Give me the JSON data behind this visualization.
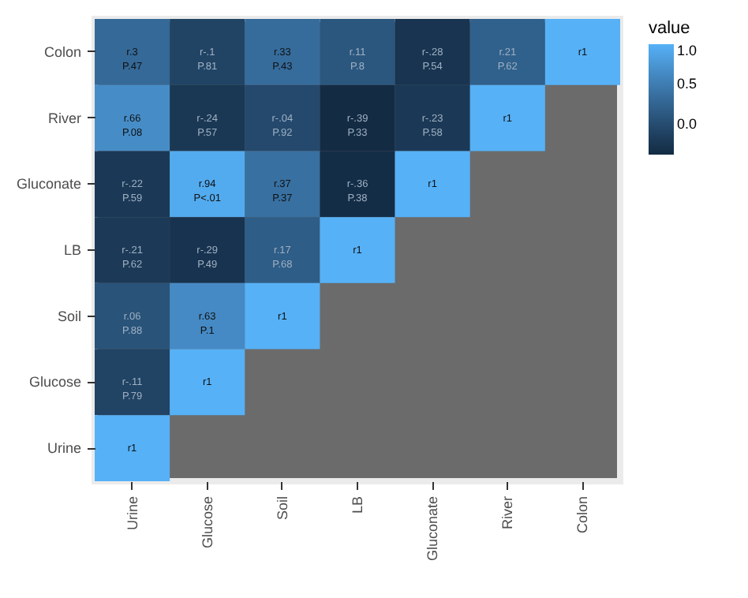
{
  "chart_data": {
    "type": "heatmap",
    "legend_title": "value",
    "categories": [
      "Urine",
      "Glucose",
      "Soil",
      "LB",
      "Gluconate",
      "River",
      "Colon"
    ],
    "y_categories": [
      "Colon",
      "River",
      "Gluconate",
      "LB",
      "Soil",
      "Glucose",
      "Urine"
    ],
    "cells": [
      [
        0.3,
        -0.1,
        0.33,
        0.11,
        -0.28,
        0.21,
        1
      ],
      [
        0.66,
        -0.24,
        -0.04,
        -0.39,
        -0.23,
        1,
        null
      ],
      [
        -0.22,
        0.94,
        0.37,
        -0.36,
        1,
        null,
        null
      ],
      [
        -0.21,
        -0.29,
        0.17,
        1,
        null,
        null,
        null
      ],
      [
        0.06,
        0.63,
        1,
        null,
        null,
        null,
        null
      ],
      [
        -0.11,
        1,
        null,
        null,
        null,
        null,
        null
      ],
      [
        1,
        null,
        null,
        null,
        null,
        null,
        null
      ]
    ],
    "cell_labels": [
      [
        "r.3\nP.47",
        "r-.1\nP.81",
        "r.33\nP.43",
        "r.11\nP.8",
        "r-.28\nP.54",
        "r.21\nP.62",
        "r1"
      ],
      [
        "r.66\nP.08",
        "r-.24\nP.57",
        "r-.04\nP.92",
        "r-.39\nP.33",
        "r-.23\nP.58",
        "r1",
        null
      ],
      [
        "r-.22\nP.59",
        "r.94\nP<.01",
        "r.37\nP.37",
        "r-.36\nP.38",
        "r1",
        null,
        null
      ],
      [
        "r-.21\nP.62",
        "r-.29\nP.49",
        "r.17\nP.68",
        "r1",
        null,
        null,
        null
      ],
      [
        "r.06\nP.88",
        "r.63\nP.1",
        "r1",
        null,
        null,
        null,
        null
      ],
      [
        "r-.11\nP.79",
        "r1",
        null,
        null,
        null,
        null,
        null
      ],
      [
        "r1",
        null,
        null,
        null,
        null,
        null,
        null
      ]
    ],
    "clim": [
      -0.39,
      1
    ],
    "cticks": [
      {
        "value": 0,
        "label": "0.0"
      },
      {
        "value": 0.5,
        "label": "0.5"
      },
      {
        "value": 1,
        "label": "1.0"
      }
    ]
  }
}
